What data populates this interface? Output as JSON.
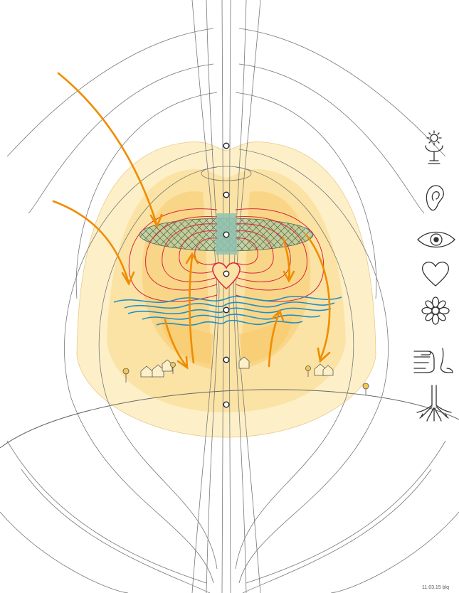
{
  "footer": {
    "signature": "11.03.15 blq"
  },
  "colors": {
    "field_line": "#777777",
    "glow_outer": "#fdf0c8",
    "glow_mid": "#fbe3a5",
    "glow_inner": "#f8d27e",
    "flow_arrow": "#f08c00",
    "inner_field": "#d8243c",
    "wave": "#1e8fc8",
    "crosshatch_band": "#9bc4a4",
    "icon_stroke": "#333333"
  },
  "icons": [
    "chalice-sun-icon",
    "ear-icon",
    "eye-icon",
    "heart-icon",
    "flower-icon",
    "hand-foot-icon",
    "roots-icon"
  ]
}
